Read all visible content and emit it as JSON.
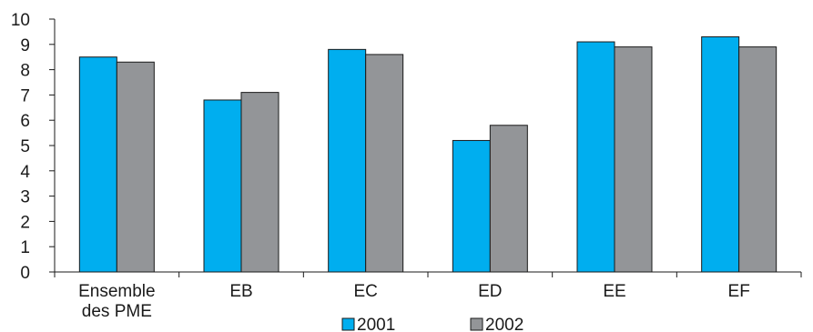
{
  "chart_data": {
    "type": "bar",
    "categories": [
      [
        "Ensemble",
        "des PME"
      ],
      [
        "EB"
      ],
      [
        "EC"
      ],
      [
        "ED"
      ],
      [
        "EE"
      ],
      [
        "EF"
      ]
    ],
    "series": [
      {
        "name": "2001",
        "color": "#00aeef",
        "values": [
          8.5,
          6.8,
          8.8,
          5.2,
          9.1,
          9.3
        ]
      },
      {
        "name": "2002",
        "color": "#939598",
        "values": [
          8.3,
          7.1,
          8.6,
          5.8,
          8.9,
          8.9
        ]
      }
    ],
    "y_ticks": [
      "0",
      "1",
      "2",
      "3",
      "4",
      "5",
      "6",
      "7",
      "8",
      "9",
      "10"
    ],
    "ylim": [
      0,
      10
    ],
    "grid": false,
    "legend_position": "bottom-center",
    "title": "",
    "xlabel": "",
    "ylabel": ""
  }
}
